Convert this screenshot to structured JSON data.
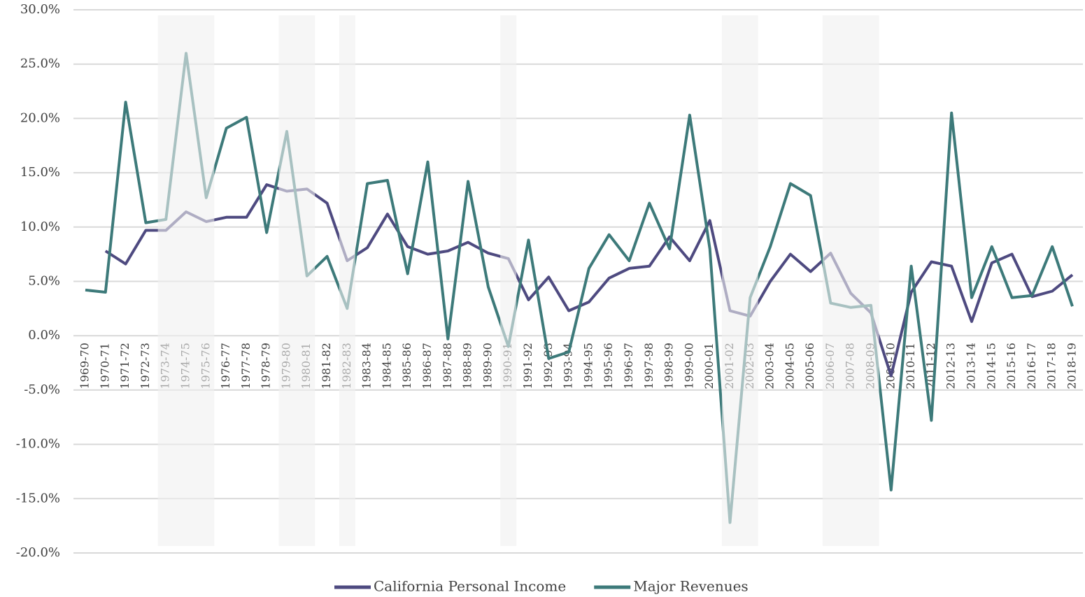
{
  "chart_data": {
    "type": "line",
    "categories": [
      "1969-70",
      "1970-71",
      "1971-72",
      "1972-73",
      "1973-74",
      "1974-75",
      "1975-76",
      "1976-77",
      "1977-78",
      "1978-79",
      "1979-80",
      "1980-81",
      "1981-82",
      "1982-83",
      "1983-84",
      "1984-85",
      "1985-86",
      "1986-87",
      "1987-88",
      "1988-89",
      "1989-90",
      "1990-91",
      "1991-92",
      "1992-93",
      "1993-94",
      "1994-95",
      "1995-96",
      "1996-97",
      "1997-98",
      "1998-99",
      "1999-00",
      "2000-01",
      "2001-02",
      "2002-03",
      "2003-04",
      "2004-05",
      "2005-06",
      "2006-07",
      "2007-08",
      "2008-09",
      "2009-10",
      "2010-11",
      "2011-12",
      "2012-13",
      "2013-14",
      "2014-15",
      "2015-16",
      "2016-17",
      "2017-18",
      "2018-19"
    ],
    "series": [
      {
        "name": "California Personal Income",
        "color": "#4e4a80",
        "values": [
          null,
          7.8,
          6.6,
          9.7,
          9.7,
          11.4,
          10.5,
          10.9,
          10.9,
          13.9,
          13.3,
          13.5,
          12.2,
          6.9,
          8.1,
          11.2,
          8.2,
          7.5,
          7.8,
          8.6,
          7.6,
          7.1,
          3.3,
          5.4,
          2.3,
          3.1,
          5.3,
          6.2,
          6.4,
          9.1,
          6.9,
          10.6,
          2.3,
          1.8,
          5.0,
          7.5,
          5.9,
          7.6,
          3.9,
          2.1,
          -3.7,
          4.0,
          6.8,
          6.4,
          1.3,
          6.7,
          7.5,
          3.6,
          4.1,
          5.6
        ]
      },
      {
        "name": "Major Revenues",
        "color": "#3d7a7a",
        "values": [
          4.2,
          4.0,
          21.5,
          10.4,
          10.7,
          26.0,
          12.7,
          19.1,
          20.1,
          9.5,
          18.8,
          5.5,
          7.3,
          2.5,
          14.0,
          14.3,
          5.7,
          16.0,
          -0.3,
          14.2,
          4.5,
          -1.0,
          8.8,
          -2.1,
          -1.5,
          6.2,
          9.3,
          6.9,
          12.2,
          8.0,
          20.3,
          8.0,
          -17.2,
          3.5,
          8.2,
          14.0,
          12.9,
          3.0,
          2.6,
          2.8,
          -14.2,
          6.4,
          -7.8,
          20.5,
          3.5,
          8.2,
          3.5,
          3.7,
          8.2,
          2.7
        ]
      }
    ],
    "ylim": [
      -20,
      30
    ],
    "yticks": [
      {
        "value": -20,
        "label": "-20.0%"
      },
      {
        "value": -15,
        "label": "-15.0%"
      },
      {
        "value": -10,
        "label": "-10.0%"
      },
      {
        "value": -5,
        "label": "-5.0%"
      },
      {
        "value": 0,
        "label": "0.0%"
      },
      {
        "value": 5,
        "label": "5.0%"
      },
      {
        "value": 10,
        "label": "10.0%"
      },
      {
        "value": 15,
        "label": "15.0%"
      },
      {
        "value": 20,
        "label": "20.0%"
      },
      {
        "value": 25,
        "label": "25.0%"
      },
      {
        "value": 30,
        "label": "30.0%"
      }
    ],
    "grid": true,
    "legend": "bottom",
    "shaded": [
      [
        "1973-74",
        "1975-76"
      ],
      [
        "1979-80",
        "1980-81"
      ],
      [
        "1982-83",
        "1982-83"
      ],
      [
        "1990-91",
        "1990-91"
      ],
      [
        "2001-02",
        "2002-03"
      ],
      [
        "2006-07",
        "2008-09"
      ]
    ]
  }
}
